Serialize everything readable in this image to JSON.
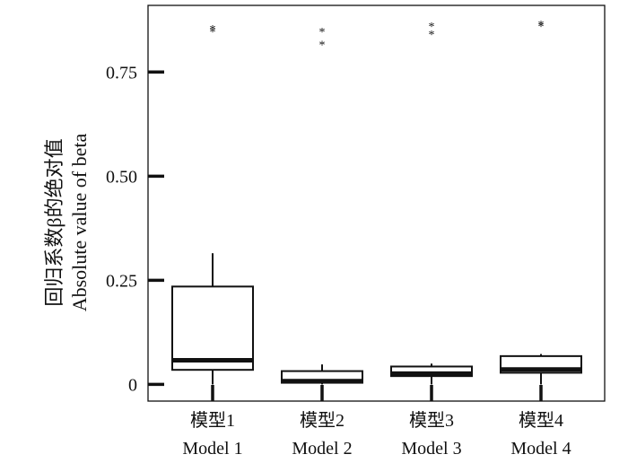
{
  "chart_data": {
    "type": "box",
    "ylabel_zh": "回归系数β的绝对值",
    "ylabel_en": "Absolute value of beta",
    "ylim": [
      -0.04,
      0.91
    ],
    "yticks": [
      0,
      0.25,
      0.5,
      0.75
    ],
    "ytick_labels": [
      "0",
      "0.25",
      "0.50",
      "0.75"
    ],
    "grid": false,
    "categories": [
      {
        "zh": "模型1",
        "en": "Model 1"
      },
      {
        "zh": "模型2",
        "en": "Model 2"
      },
      {
        "zh": "模型3",
        "en": "Model 3"
      },
      {
        "zh": "模型4",
        "en": "Model 4"
      }
    ],
    "boxes": [
      {
        "min": 0.0,
        "q1": 0.035,
        "median": 0.058,
        "q3": 0.235,
        "max": 0.315,
        "outliers": [
          0.848,
          0.854
        ]
      },
      {
        "min": 0.0,
        "q1": 0.004,
        "median": 0.008,
        "q3": 0.032,
        "max": 0.048,
        "outliers": [
          0.816,
          0.847
        ]
      },
      {
        "min": 0.0,
        "q1": 0.02,
        "median": 0.026,
        "q3": 0.043,
        "max": 0.05,
        "outliers": [
          0.841,
          0.86
        ]
      },
      {
        "min": 0.0,
        "q1": 0.028,
        "median": 0.036,
        "q3": 0.068,
        "max": 0.073,
        "outliers": [
          0.86,
          0.865
        ]
      }
    ],
    "colors": {
      "box_fill": "#ffffff",
      "stroke": "#111111",
      "outlier": "#555555"
    }
  }
}
